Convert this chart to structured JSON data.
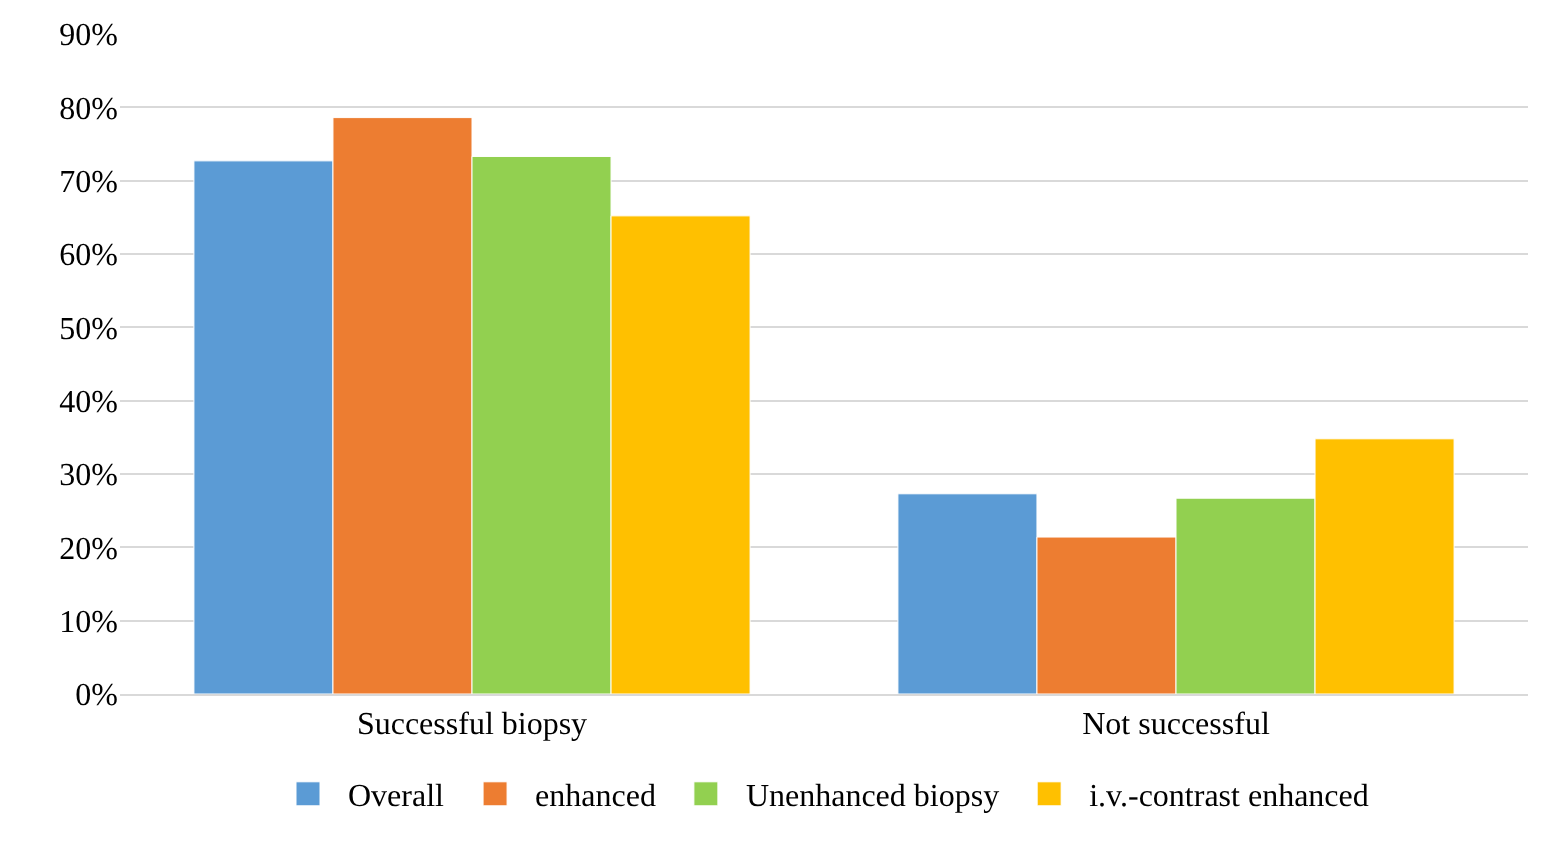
{
  "chart_data": {
    "type": "bar",
    "categories": [
      "Successful biopsy",
      "Not successful"
    ],
    "series": [
      {
        "name": "Overall",
        "color": "#5b9bd5",
        "values": [
          72.7,
          27.3
        ]
      },
      {
        "name": "enhanced",
        "color": "#ed7d31",
        "values": [
          78.6,
          21.4
        ]
      },
      {
        "name": "Unenhanced biopsy",
        "color": "#92d050",
        "values": [
          73.3,
          26.7
        ]
      },
      {
        "name": "i.v.-contrast enhanced",
        "color": "#ffc000",
        "values": [
          65.2,
          34.8
        ]
      }
    ],
    "ylim": [
      0,
      90
    ],
    "yticks": [
      {
        "value": 0,
        "label": "0%"
      },
      {
        "value": 10,
        "label": "10%"
      },
      {
        "value": 20,
        "label": "20%"
      },
      {
        "value": 30,
        "label": "30%"
      },
      {
        "value": 40,
        "label": "40%"
      },
      {
        "value": 50,
        "label": "50%"
      },
      {
        "value": 60,
        "label": "60%"
      },
      {
        "value": 70,
        "label": "70%"
      },
      {
        "value": 80,
        "label": "80%"
      },
      {
        "value": 90,
        "label": "90%"
      }
    ],
    "grid": "y",
    "legend": "bottom"
  }
}
